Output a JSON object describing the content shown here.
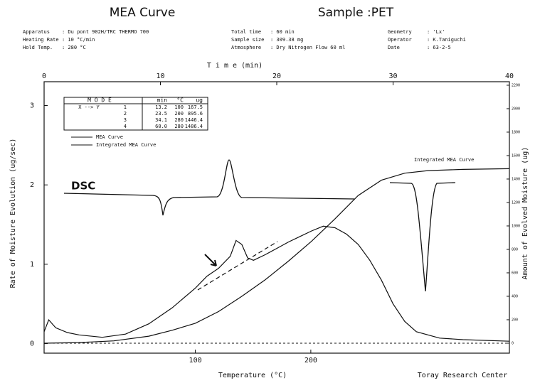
{
  "header": {
    "title": "MEA Curve",
    "sample": "Sample :PET",
    "info": [
      [
        "Apparatus",
        ": Du pont 902H/TRC THERMO 700"
      ],
      [
        "Heating Rate",
        ": 10 °C/min"
      ],
      [
        "Hold Temp.",
        ": 280 °C"
      ],
      [
        "Total time",
        ": 60 min"
      ],
      [
        "Sample size",
        ": 309.38 mg"
      ],
      [
        "Atmosphere",
        ": Dry Nitrogen Flow 60 ml"
      ],
      [
        "Geometry",
        ": 'Lx'"
      ],
      [
        "Operator",
        ": K.Taniguchi"
      ],
      [
        "Date",
        ": 63-2-5"
      ]
    ]
  },
  "table": {
    "header": [
      "M O D E",
      "min",
      "°C",
      "ug"
    ],
    "subheader": "X --> Y",
    "rows": [
      [
        "1",
        "13.2",
        "100",
        "167.5"
      ],
      [
        "2",
        "23.5",
        "200",
        "895.6"
      ],
      [
        "3",
        "34.1",
        "280",
        "1446.4"
      ],
      [
        "4",
        "60.0",
        "280",
        "1486.4"
      ]
    ]
  },
  "chart_data": {
    "type": "line",
    "xlabel": "T i m e   (min)",
    "x2label": "Temperature   (°C)",
    "ylabel": "Rate of Moisture Evolution (ug/sec)",
    "y2label": "Amount of Evolved Moisture (ug)",
    "credit": "Toray Research Center",
    "annotations": [
      "DSC",
      "Integrated MEA Curve"
    ],
    "xlim": [
      0,
      40
    ],
    "xticks": [
      0,
      10,
      20,
      30,
      40
    ],
    "x2lim": [
      -31,
      372
    ],
    "x2ticks": [
      100,
      200
    ],
    "ylim": [
      -0.12,
      3.3
    ],
    "yticks": [
      0,
      1,
      2,
      3
    ],
    "y2lim": [
      -85,
      2230
    ],
    "y2ticks": [
      0,
      200,
      400,
      600,
      800,
      1000,
      1200,
      1400,
      1600,
      1800,
      2000,
      2200
    ],
    "series": [
      {
        "name": "MEA Curve",
        "color": "#111111",
        "x": [
          0,
          0.4,
          1,
          2,
          3,
          5,
          7,
          9,
          11,
          13,
          14,
          15,
          16,
          16.5,
          17,
          17.5,
          18,
          19,
          20,
          21,
          22,
          23,
          24,
          25,
          26,
          27,
          28,
          29,
          30,
          31,
          32,
          34,
          36,
          40
        ],
        "values": [
          0.15,
          0.3,
          0.2,
          0.14,
          0.11,
          0.08,
          0.12,
          0.25,
          0.45,
          0.7,
          0.85,
          0.95,
          1.1,
          1.3,
          1.25,
          1.08,
          1.05,
          1.12,
          1.2,
          1.28,
          1.35,
          1.42,
          1.48,
          1.46,
          1.38,
          1.25,
          1.05,
          0.8,
          0.5,
          0.28,
          0.15,
          0.07,
          0.05,
          0.03
        ]
      },
      {
        "name": "Integrated MEA Curve",
        "color": "#111111",
        "axis": "y2",
        "x": [
          0,
          3,
          6,
          9,
          11,
          13,
          15,
          17,
          19,
          21,
          23,
          25,
          27,
          29,
          31,
          33,
          36,
          40
        ],
        "values": [
          0,
          5,
          20,
          60,
          110,
          170,
          270,
          400,
          540,
          700,
          870,
          1060,
          1260,
          1390,
          1450,
          1472,
          1482,
          1488
        ]
      }
    ]
  }
}
